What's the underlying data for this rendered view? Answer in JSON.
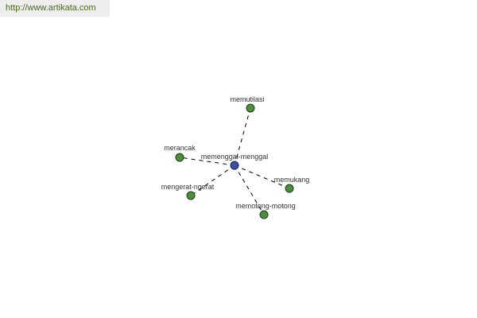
{
  "site_url": "http://www.artikata.com",
  "graph": {
    "center": {
      "label": "memenggal-menggal",
      "color": "#3b4ea0"
    },
    "leaf_color": "#4e8c3e",
    "related": [
      {
        "label": "memutilasi"
      },
      {
        "label": "merancak"
      },
      {
        "label": "mengerat-ngerat"
      },
      {
        "label": "memukang"
      },
      {
        "label": "memotong-motong"
      }
    ]
  }
}
